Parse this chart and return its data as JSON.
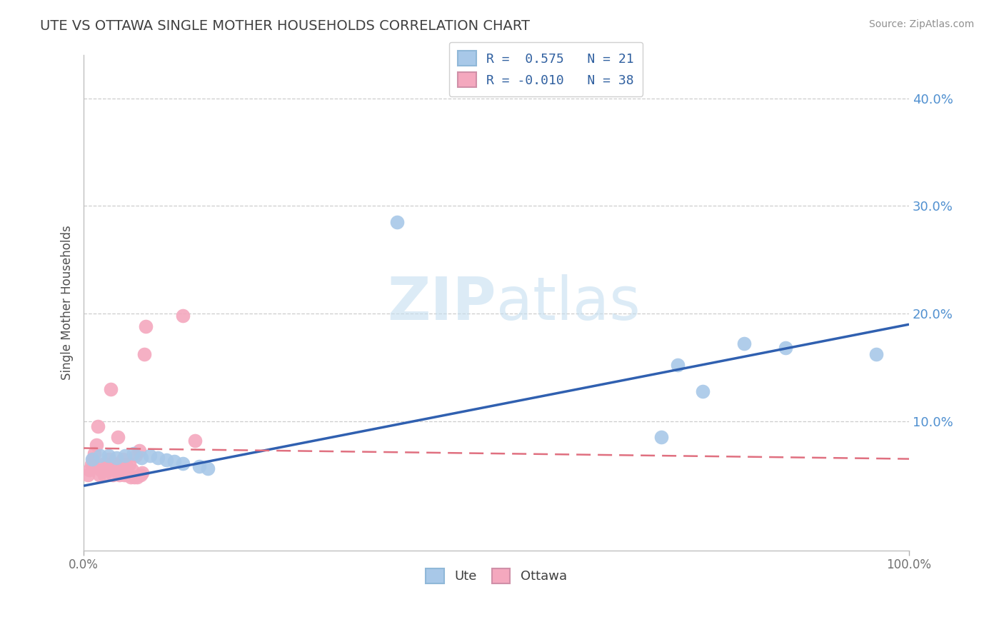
{
  "title": "UTE VS OTTAWA SINGLE MOTHER HOUSEHOLDS CORRELATION CHART",
  "source_text": "Source: ZipAtlas.com",
  "ylabel": "Single Mother Households",
  "watermark": "ZIPatlas",
  "xlim": [
    0.0,
    1.0
  ],
  "ylim": [
    -0.02,
    0.44
  ],
  "legend_ute_r": "0.575",
  "legend_ute_n": "21",
  "legend_ottawa_r": "-0.010",
  "legend_ottawa_n": "38",
  "ute_color": "#a8c8e8",
  "ottawa_color": "#f4a8be",
  "ute_line_color": "#3060b0",
  "ottawa_line_color": "#e07080",
  "title_color": "#404040",
  "source_color": "#909090",
  "grid_color": "#c8c8c8",
  "ytick_color": "#5090d0",
  "background_color": "#ffffff",
  "ute_x": [
    0.01,
    0.02,
    0.03,
    0.04,
    0.05,
    0.06,
    0.07,
    0.08,
    0.09,
    0.1,
    0.11,
    0.12,
    0.14,
    0.15,
    0.38,
    0.7,
    0.72,
    0.75,
    0.8,
    0.85,
    0.96
  ],
  "ute_y": [
    0.065,
    0.068,
    0.068,
    0.066,
    0.068,
    0.07,
    0.066,
    0.068,
    0.066,
    0.064,
    0.063,
    0.061,
    0.058,
    0.056,
    0.285,
    0.085,
    0.152,
    0.128,
    0.172,
    0.168,
    0.162
  ],
  "ottawa_x": [
    0.005,
    0.007,
    0.009,
    0.011,
    0.013,
    0.015,
    0.017,
    0.019,
    0.021,
    0.023,
    0.025,
    0.027,
    0.029,
    0.031,
    0.033,
    0.035,
    0.037,
    0.039,
    0.041,
    0.043,
    0.045,
    0.047,
    0.049,
    0.051,
    0.053,
    0.055,
    0.057,
    0.059,
    0.061,
    0.063,
    0.065,
    0.067,
    0.069,
    0.071,
    0.073,
    0.075,
    0.12,
    0.135
  ],
  "ottawa_y": [
    0.05,
    0.055,
    0.06,
    0.065,
    0.07,
    0.078,
    0.095,
    0.05,
    0.055,
    0.06,
    0.05,
    0.055,
    0.06,
    0.065,
    0.13,
    0.05,
    0.055,
    0.06,
    0.085,
    0.05,
    0.055,
    0.065,
    0.05,
    0.06,
    0.05,
    0.06,
    0.048,
    0.055,
    0.048,
    0.068,
    0.048,
    0.073,
    0.05,
    0.052,
    0.162,
    0.188,
    0.198,
    0.082
  ],
  "ute_line_x0": 0.0,
  "ute_line_x1": 1.0,
  "ute_line_y0": 0.04,
  "ute_line_y1": 0.19,
  "ottawa_line_x0": 0.0,
  "ottawa_line_x1": 1.0,
  "ottawa_line_y0": 0.075,
  "ottawa_line_y1": 0.065
}
